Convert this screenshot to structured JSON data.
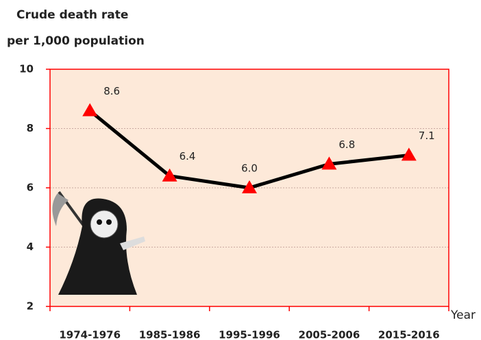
{
  "chart_data": {
    "type": "line",
    "ylabel": [
      "Crude death rate",
      "per 1,000 population"
    ],
    "xlabel": "Year",
    "categories": [
      "1974-1976",
      "1985-1986",
      "1995-1996",
      "2005-2006",
      "2015-2016"
    ],
    "series": [
      {
        "name": "Crude death rate",
        "color": "#000000",
        "marker_color": "#ff0000",
        "values": [
          8.6,
          6.4,
          6.0,
          6.8,
          7.1
        ],
        "value_labels": [
          "8.6",
          "6.4",
          "6.0",
          "6.8",
          "7.1"
        ]
      }
    ],
    "ylim": [
      2,
      10
    ],
    "yticks": [
      2,
      4,
      6,
      8,
      10
    ],
    "grid": true,
    "plot_background": "#fde9d9",
    "axis_color": "#ff0000"
  }
}
